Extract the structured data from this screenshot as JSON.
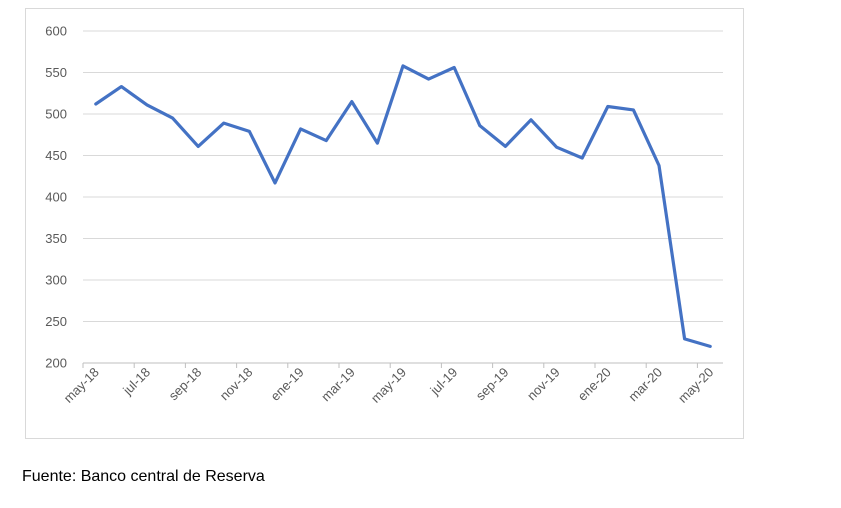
{
  "chart_data": {
    "type": "line",
    "title": "",
    "xlabel": "",
    "ylabel": "",
    "ylim": [
      200,
      600
    ],
    "yticks": [
      "200",
      "250",
      "300",
      "350",
      "400",
      "450",
      "500",
      "550",
      "600"
    ],
    "xtick_labels": [
      "may-18",
      "jul-18",
      "sep-18",
      "nov-18",
      "ene-19",
      "mar-19",
      "may-19",
      "jul-19",
      "sep-19",
      "nov-19",
      "ene-20",
      "mar-20",
      "may-20"
    ],
    "x": [
      "may-18",
      "jun-18",
      "jul-18",
      "ago-18",
      "sep-18",
      "oct-18",
      "nov-18",
      "dic-18",
      "ene-19",
      "feb-19",
      "mar-19",
      "abr-19",
      "may-19",
      "jun-19",
      "jul-19",
      "ago-19",
      "sep-19",
      "oct-19",
      "nov-19",
      "dic-19",
      "ene-20",
      "feb-20",
      "mar-20",
      "abr-20",
      "may-20"
    ],
    "series": [
      {
        "values": [
          512,
          533,
          511,
          495,
          461,
          489,
          479,
          417,
          482,
          468,
          515,
          465,
          558,
          542,
          556,
          486,
          461,
          493,
          460,
          447,
          509,
          505,
          438,
          229,
          220
        ],
        "color": "#4472c4"
      }
    ],
    "grid": true,
    "legend": "none"
  },
  "footer": {
    "source": "Fuente: Banco central de Reserva"
  }
}
